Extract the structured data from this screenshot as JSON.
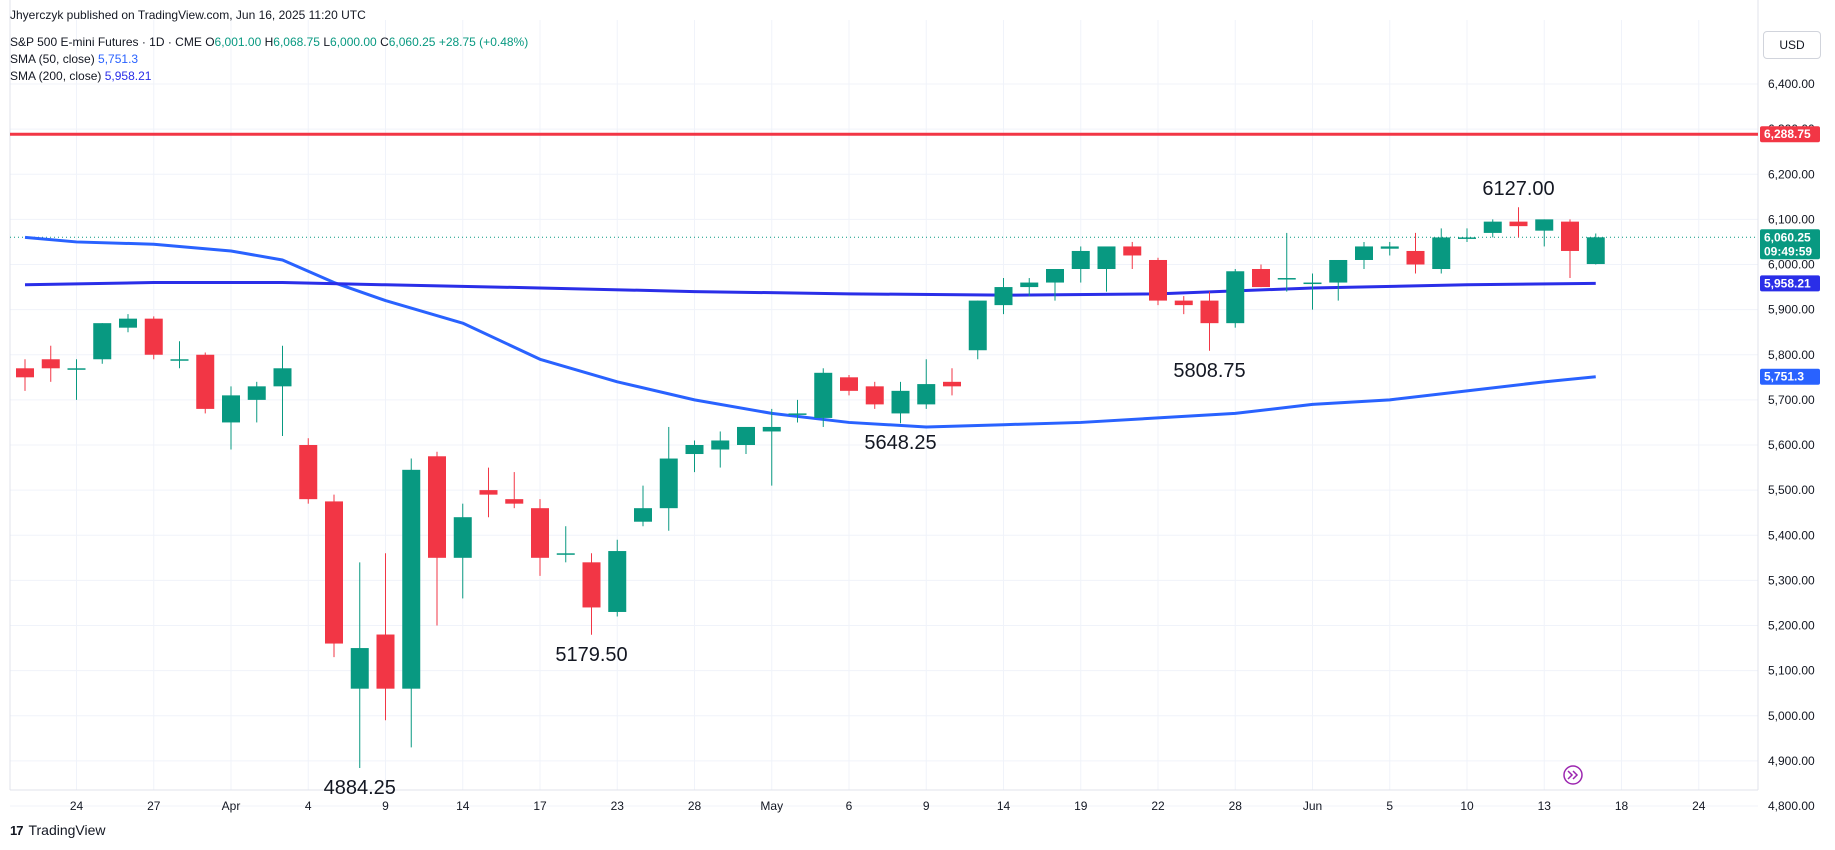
{
  "header": {
    "published": "Jhyerczyk published on TradingView.com, Jun 16, 2025 11:20 UTC",
    "symbol": "S&P 500 E-mini Futures · 1D · CME",
    "o_label": "O",
    "o_value": "6,001.00",
    "h_label": "H",
    "h_value": "6,068.75",
    "l_label": "L",
    "l_value": "6,000.00",
    "c_label": "C",
    "c_value": "6,060.25",
    "change": "+28.75 (+0.48%)",
    "sma50_label": "SMA (50, close)",
    "sma50_value": "5,751.3",
    "sma200_label": "SMA (200, close)",
    "sma200_value": "5,958.21"
  },
  "currency": "USD",
  "footer": {
    "logo": "17",
    "brand": "TradingView"
  },
  "colors": {
    "up": "#089981",
    "down": "#f23645",
    "sma50": "#2962ff",
    "sma200": "#2a2ee8",
    "resistance": "#f23645"
  },
  "chart_data": {
    "type": "candlestick",
    "ylim": [
      4750,
      6500
    ],
    "yticks": [
      4800,
      4900,
      5000,
      5100,
      5200,
      5300,
      5400,
      5500,
      5600,
      5700,
      5800,
      5900,
      6000,
      6100,
      6200,
      6300,
      6400
    ],
    "ytick_labels": [
      "4,800.00",
      "4,900.00",
      "5,000.00",
      "5,100.00",
      "5,200.00",
      "5,300.00",
      "5,400.00",
      "5,500.00",
      "5,600.00",
      "5,700.00",
      "5,800.00",
      "5,900.00",
      "6,000.00",
      "6,100.00",
      "6,200.00",
      "6,300.00",
      "6,400.00"
    ],
    "xticks": [
      {
        "idx": 2,
        "label": "24"
      },
      {
        "idx": 5,
        "label": "27"
      },
      {
        "idx": 8,
        "label": "Apr"
      },
      {
        "idx": 11,
        "label": "4"
      },
      {
        "idx": 14,
        "label": "9"
      },
      {
        "idx": 17,
        "label": "14"
      },
      {
        "idx": 20,
        "label": "17"
      },
      {
        "idx": 23,
        "label": "23"
      },
      {
        "idx": 26,
        "label": "28"
      },
      {
        "idx": 29,
        "label": "May"
      },
      {
        "idx": 32,
        "label": "6"
      },
      {
        "idx": 35,
        "label": "9"
      },
      {
        "idx": 38,
        "label": "14"
      },
      {
        "idx": 41,
        "label": "19"
      },
      {
        "idx": 44,
        "label": "22"
      },
      {
        "idx": 47,
        "label": "28"
      },
      {
        "idx": 50,
        "label": "Jun"
      },
      {
        "idx": 53,
        "label": "5"
      },
      {
        "idx": 56,
        "label": "10"
      },
      {
        "idx": 59,
        "label": "13"
      },
      {
        "idx": 62,
        "label": "18"
      },
      {
        "idx": 65,
        "label": "24"
      }
    ],
    "candles": [
      {
        "o": 5770,
        "h": 5790,
        "l": 5720,
        "c": 5750
      },
      {
        "o": 5790,
        "h": 5820,
        "l": 5740,
        "c": 5770
      },
      {
        "o": 5770,
        "h": 5790,
        "l": 5700,
        "c": 5770
      },
      {
        "o": 5790,
        "h": 5870,
        "l": 5780,
        "c": 5870
      },
      {
        "o": 5860,
        "h": 5890,
        "l": 5850,
        "c": 5880
      },
      {
        "o": 5880,
        "h": 5885,
        "l": 5790,
        "c": 5800
      },
      {
        "o": 5790,
        "h": 5830,
        "l": 5770,
        "c": 5790
      },
      {
        "o": 5800,
        "h": 5805,
        "l": 5670,
        "c": 5680
      },
      {
        "o": 5650,
        "h": 5730,
        "l": 5590,
        "c": 5710
      },
      {
        "o": 5700,
        "h": 5740,
        "l": 5650,
        "c": 5730
      },
      {
        "o": 5730,
        "h": 5820,
        "l": 5620,
        "c": 5770
      },
      {
        "o": 5600,
        "h": 5615,
        "l": 5470,
        "c": 5480
      },
      {
        "o": 5475,
        "h": 5490,
        "l": 5130,
        "c": 5160
      },
      {
        "o": 5060,
        "h": 5340,
        "l": 4884.25,
        "c": 5150
      },
      {
        "o": 5180,
        "h": 5360,
        "l": 4990,
        "c": 5060
      },
      {
        "o": 5060,
        "h": 5570,
        "l": 4930,
        "c": 5545
      },
      {
        "o": 5575,
        "h": 5585,
        "l": 5200,
        "c": 5350
      },
      {
        "o": 5350,
        "h": 5470,
        "l": 5260,
        "c": 5440
      },
      {
        "o": 5500,
        "h": 5550,
        "l": 5440,
        "c": 5490
      },
      {
        "o": 5480,
        "h": 5540,
        "l": 5460,
        "c": 5470
      },
      {
        "o": 5460,
        "h": 5480,
        "l": 5310,
        "c": 5350
      },
      {
        "o": 5360,
        "h": 5420,
        "l": 5340,
        "c": 5360
      },
      {
        "o": 5340,
        "h": 5360,
        "l": 5179.5,
        "c": 5240
      },
      {
        "o": 5230,
        "h": 5390,
        "l": 5220,
        "c": 5365
      },
      {
        "o": 5430,
        "h": 5510,
        "l": 5420,
        "c": 5460
      },
      {
        "o": 5460,
        "h": 5640,
        "l": 5410,
        "c": 5570
      },
      {
        "o": 5580,
        "h": 5610,
        "l": 5540,
        "c": 5600
      },
      {
        "o": 5590,
        "h": 5630,
        "l": 5550,
        "c": 5610
      },
      {
        "o": 5600,
        "h": 5640,
        "l": 5580,
        "c": 5640
      },
      {
        "o": 5630,
        "h": 5680,
        "l": 5510,
        "c": 5640
      },
      {
        "o": 5670,
        "h": 5700,
        "l": 5650,
        "c": 5670
      },
      {
        "o": 5660,
        "h": 5770,
        "l": 5640,
        "c": 5760
      },
      {
        "o": 5750,
        "h": 5755,
        "l": 5710,
        "c": 5720
      },
      {
        "o": 5730,
        "h": 5740,
        "l": 5680,
        "c": 5690
      },
      {
        "o": 5670,
        "h": 5740,
        "l": 5648.25,
        "c": 5720
      },
      {
        "o": 5690,
        "h": 5790,
        "l": 5680,
        "c": 5735
      },
      {
        "o": 5740,
        "h": 5770,
        "l": 5710,
        "c": 5730
      },
      {
        "o": 5810,
        "h": 5920,
        "l": 5790,
        "c": 5920
      },
      {
        "o": 5910,
        "h": 5970,
        "l": 5890,
        "c": 5950
      },
      {
        "o": 5950,
        "h": 5970,
        "l": 5930,
        "c": 5960
      },
      {
        "o": 5960,
        "h": 5990,
        "l": 5920,
        "c": 5990
      },
      {
        "o": 5990,
        "h": 6040,
        "l": 5960,
        "c": 6030
      },
      {
        "o": 5990,
        "h": 6040,
        "l": 5940,
        "c": 6040
      },
      {
        "o": 6040,
        "h": 6050,
        "l": 5990,
        "c": 6020
      },
      {
        "o": 6010,
        "h": 6015,
        "l": 5910,
        "c": 5920
      },
      {
        "o": 5920,
        "h": 5930,
        "l": 5890,
        "c": 5910
      },
      {
        "o": 5920,
        "h": 5940,
        "l": 5808.75,
        "c": 5870
      },
      {
        "o": 5870,
        "h": 5990,
        "l": 5860,
        "c": 5985
      },
      {
        "o": 5990,
        "h": 6000,
        "l": 5950,
        "c": 5950
      },
      {
        "o": 5970,
        "h": 6070,
        "l": 5940,
        "c": 5970
      },
      {
        "o": 5960,
        "h": 5980,
        "l": 5900,
        "c": 5960
      },
      {
        "o": 5960,
        "h": 6010,
        "l": 5920,
        "c": 6010
      },
      {
        "o": 6010,
        "h": 6050,
        "l": 5990,
        "c": 6040
      },
      {
        "o": 6035,
        "h": 6050,
        "l": 6020,
        "c": 6040
      },
      {
        "o": 6030,
        "h": 6070,
        "l": 5980,
        "c": 6000
      },
      {
        "o": 5990,
        "h": 6080,
        "l": 5980,
        "c": 6060
      },
      {
        "o": 6060,
        "h": 6080,
        "l": 6050,
        "c": 6060
      },
      {
        "o": 6070,
        "h": 6100,
        "l": 6060,
        "c": 6095
      },
      {
        "o": 6095,
        "h": 6127,
        "l": 6060,
        "c": 6085
      },
      {
        "o": 6075,
        "h": 6100,
        "l": 6040,
        "c": 6100
      },
      {
        "o": 6095,
        "h": 6100,
        "l": 5970,
        "c": 6030
      },
      {
        "o": 6001,
        "h": 6068.75,
        "l": 6000,
        "c": 6060.25
      }
    ],
    "sma50": [
      [
        0,
        6060
      ],
      [
        2,
        6050
      ],
      [
        5,
        6045
      ],
      [
        8,
        6030
      ],
      [
        10,
        6010
      ],
      [
        12,
        5960
      ],
      [
        14,
        5920
      ],
      [
        17,
        5870
      ],
      [
        20,
        5790
      ],
      [
        23,
        5740
      ],
      [
        26,
        5700
      ],
      [
        29,
        5670
      ],
      [
        32,
        5650
      ],
      [
        35,
        5640
      ],
      [
        38,
        5645
      ],
      [
        41,
        5650
      ],
      [
        44,
        5660
      ],
      [
        47,
        5670
      ],
      [
        50,
        5690
      ],
      [
        53,
        5700
      ],
      [
        56,
        5720
      ],
      [
        59,
        5740
      ],
      [
        61,
        5751.3
      ]
    ],
    "sma200": [
      [
        0,
        5955
      ],
      [
        5,
        5960
      ],
      [
        10,
        5960
      ],
      [
        14,
        5955
      ],
      [
        20,
        5948
      ],
      [
        26,
        5940
      ],
      [
        32,
        5935
      ],
      [
        38,
        5932
      ],
      [
        44,
        5935
      ],
      [
        50,
        5948
      ],
      [
        56,
        5955
      ],
      [
        61,
        5958.21
      ]
    ],
    "resistance": 6288.75,
    "annotations": [
      {
        "idx": 13,
        "value": 4884.25,
        "label": "4884.25",
        "pos": "below"
      },
      {
        "idx": 22,
        "value": 5179.5,
        "label": "5179.50",
        "pos": "below"
      },
      {
        "idx": 34,
        "value": 5648.25,
        "label": "5648.25",
        "pos": "below"
      },
      {
        "idx": 46,
        "value": 5808.75,
        "label": "5808.75",
        "pos": "below"
      },
      {
        "idx": 58,
        "value": 6127,
        "label": "6127.00",
        "pos": "above"
      }
    ],
    "price_tags": [
      {
        "value": 6288.75,
        "label": "6,288.75",
        "color": "#f23645"
      },
      {
        "value": 6060.25,
        "label": "6,060.25",
        "sub": "09:49:59",
        "color": "#089981"
      },
      {
        "value": 5958.21,
        "label": "5,958.21",
        "color": "#2a2ee8"
      },
      {
        "value": 5751.3,
        "label": "5,751.3",
        "color": "#2962ff"
      }
    ]
  }
}
